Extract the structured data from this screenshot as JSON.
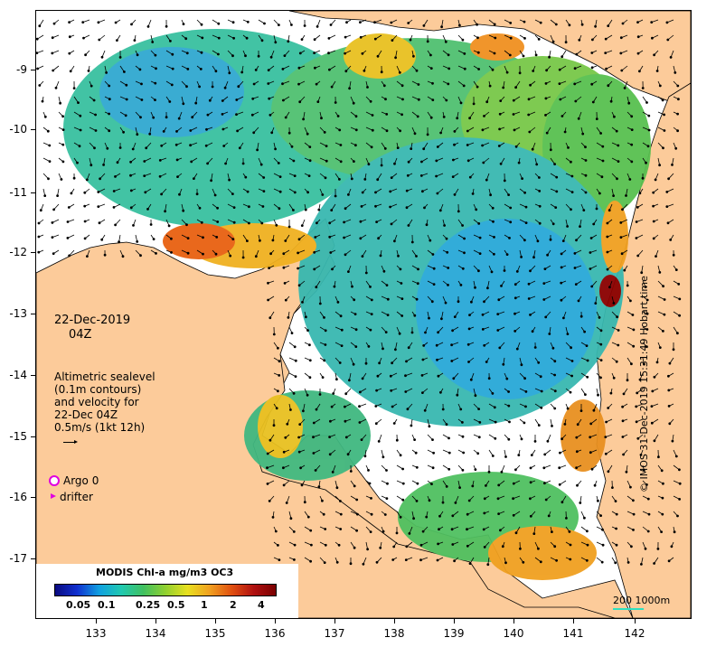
{
  "map": {
    "date": "22-Dec-2019",
    "hour": "04Z",
    "altimetry_lines": [
      "Altimetric sealevel",
      "(0.1m contours)",
      "and velocity for",
      "22-Dec 04Z",
      "0.5m/s (1kt 12h)"
    ],
    "argo_label": "Argo 0",
    "drifter_label": "drifter",
    "colorbar_title": "MODIS Chl-a mg/m3 OC3",
    "colorbar_ticks": [
      "0.05",
      "0.1",
      "0.25",
      "0.5",
      "1",
      "2",
      "4"
    ],
    "scale_label": "200  1000m",
    "credit": "© IMOS 31-Dec-2019 15:31:49 Hobart time",
    "lat_labels": [
      "-9",
      "-10",
      "-11",
      "-12",
      "-13",
      "-14",
      "-15",
      "-16",
      "-17"
    ],
    "lon_labels": [
      "133",
      "134",
      "135",
      "136",
      "137",
      "138",
      "139",
      "140",
      "141",
      "142"
    ],
    "colors": {
      "land": "#fccb9a",
      "ocean": "#ffffff",
      "argo": "#e000e0",
      "drifter": "#e000e0",
      "scale_bar": "#2ee0c0"
    }
  }
}
